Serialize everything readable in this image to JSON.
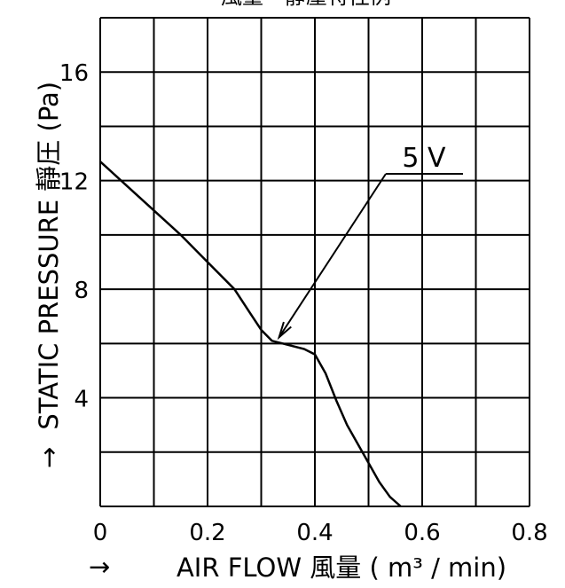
{
  "chart_data": {
    "type": "line",
    "title": "風量－靜壓特性例",
    "xlabel_prefix": "→",
    "xlabel": "AIR  FLOW 風量 ( m³ ∕ min)",
    "ylabel_prefix": "→",
    "ylabel": "STATIC  PRESSURE 靜圧 (Pa)",
    "xlim": [
      0,
      0.8
    ],
    "ylim": [
      0,
      18
    ],
    "x_ticks": [
      "0",
      "0.2",
      "0.4",
      "0.6",
      "0.8"
    ],
    "y_ticks": [
      "4",
      "8",
      "12",
      "16"
    ],
    "grid": true,
    "series": [
      {
        "name": "5 V",
        "x": [
          0.0,
          0.05,
          0.1,
          0.15,
          0.2,
          0.25,
          0.28,
          0.3,
          0.32,
          0.34,
          0.36,
          0.38,
          0.4,
          0.42,
          0.44,
          0.46,
          0.48,
          0.5,
          0.52,
          0.54,
          0.56
        ],
        "y": [
          12.7,
          11.8,
          10.9,
          10.0,
          9.0,
          8.0,
          7.1,
          6.5,
          6.1,
          6.0,
          5.9,
          5.8,
          5.6,
          4.9,
          3.9,
          3.0,
          2.3,
          1.6,
          0.9,
          0.35,
          0.0
        ]
      }
    ],
    "annotations": [
      {
        "text": "5 V",
        "target": {
          "x": 0.33,
          "y": 6.1
        }
      }
    ]
  }
}
